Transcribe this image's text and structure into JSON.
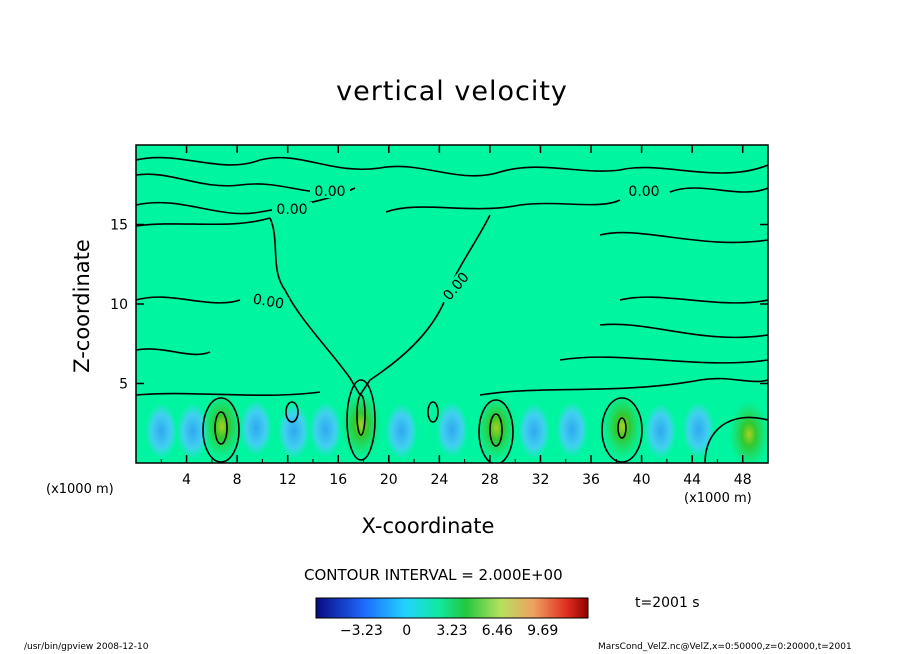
{
  "chart_data": {
    "type": "heatmap",
    "title": "vertical velocity",
    "xlabel": "X-coordinate",
    "ylabel": "Z-coordinate",
    "x_unit_label": "(x1000 m)",
    "xlim": [
      0,
      50
    ],
    "ylim": [
      0,
      20
    ],
    "x_ticks": [
      "4",
      "8",
      "12",
      "16",
      "20",
      "24",
      "28",
      "32",
      "36",
      "40",
      "44",
      "48"
    ],
    "y_ticks": [
      "5",
      "10",
      "15"
    ],
    "contour_labels": [
      "0.00",
      "0.00",
      "0.00",
      "0.00",
      "0.00"
    ],
    "contour_interval_text": "CONTOUR INTERVAL = 2.000E+00",
    "colorbar_ticks": [
      "−3.23",
      "0",
      "3.23",
      "6.46",
      "9.69"
    ],
    "colorbar_range": [
      -6.46,
      12.92
    ],
    "time_label": "t=2001 s",
    "background_color": "#00f5a0",
    "updraft_color": "#2dd35a",
    "downdraft_color": "#38c8f0",
    "updraft_cells": [
      {
        "x": 6.8,
        "z": 2.3,
        "peak": 9.69
      },
      {
        "x": 17.8,
        "z": 2.4,
        "peak": 6.46
      },
      {
        "x": 28.5,
        "z": 2.2,
        "peak": 9.69
      },
      {
        "x": 38.5,
        "z": 2.3,
        "peak": 9.69
      },
      {
        "x": 48.5,
        "z": 1.8,
        "peak": 3.23
      }
    ],
    "downdraft_cells": [
      {
        "x": 2.0,
        "z": 2.0
      },
      {
        "x": 4.5,
        "z": 2.0
      },
      {
        "x": 9.5,
        "z": 2.2
      },
      {
        "x": 12.5,
        "z": 2.0
      },
      {
        "x": 15.0,
        "z": 2.1
      },
      {
        "x": 21.0,
        "z": 2.0
      },
      {
        "x": 25.0,
        "z": 2.1
      },
      {
        "x": 31.5,
        "z": 2.0
      },
      {
        "x": 34.5,
        "z": 2.1
      },
      {
        "x": 41.5,
        "z": 2.0
      },
      {
        "x": 44.5,
        "z": 2.1
      }
    ]
  },
  "footer": {
    "left": "/usr/bin/gpview   2008-12-10",
    "right": "MarsCond_VelZ.nc@VelZ,x=0:50000,z=0:20000,t=2001"
  }
}
